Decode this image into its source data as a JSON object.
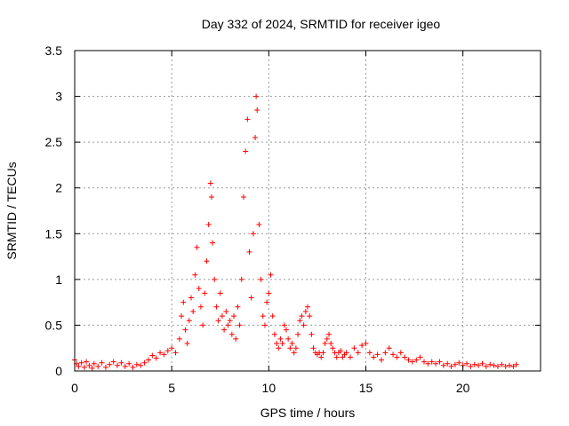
{
  "chart_data": {
    "type": "scatter",
    "title": "Day 332 of 2024, SRMTID for receiver igeo",
    "xlabel": "GPS time / hours",
    "ylabel": "SRMTID / TECUs",
    "xlim": [
      0,
      24
    ],
    "ylim": [
      0,
      3.5
    ],
    "x_ticks": [
      0,
      5,
      10,
      15,
      20
    ],
    "x_tick_labels": [
      "0",
      "5",
      "10",
      "15",
      "20"
    ],
    "y_ticks": [
      0,
      0.5,
      1,
      1.5,
      2,
      2.5,
      3,
      3.5
    ],
    "y_tick_labels": [
      "0",
      "0.5",
      "1",
      "1.5",
      "2",
      "2.5",
      "3",
      "3.5"
    ],
    "grid": true,
    "marker": "+",
    "color": "#ff0000",
    "series": [
      {
        "name": "SRMTID",
        "points": [
          [
            0.0,
            0.12
          ],
          [
            0.1,
            0.08
          ],
          [
            0.2,
            0.05
          ],
          [
            0.35,
            0.09
          ],
          [
            0.5,
            0.04
          ],
          [
            0.6,
            0.1
          ],
          [
            0.75,
            0.06
          ],
          [
            0.9,
            0.03
          ],
          [
            1.0,
            0.08
          ],
          [
            1.2,
            0.05
          ],
          [
            1.4,
            0.09
          ],
          [
            1.6,
            0.04
          ],
          [
            1.8,
            0.07
          ],
          [
            2.0,
            0.1
          ],
          [
            2.2,
            0.06
          ],
          [
            2.4,
            0.09
          ],
          [
            2.6,
            0.05
          ],
          [
            2.8,
            0.08
          ],
          [
            3.0,
            0.04
          ],
          [
            3.2,
            0.07
          ],
          [
            3.4,
            0.06
          ],
          [
            3.6,
            0.09
          ],
          [
            3.8,
            0.12
          ],
          [
            4.0,
            0.17
          ],
          [
            4.2,
            0.14
          ],
          [
            4.4,
            0.2
          ],
          [
            4.6,
            0.18
          ],
          [
            4.8,
            0.22
          ],
          [
            5.0,
            0.25
          ],
          [
            5.2,
            0.2
          ],
          [
            5.4,
            0.35
          ],
          [
            5.5,
            0.6
          ],
          [
            5.6,
            0.75
          ],
          [
            5.7,
            0.45
          ],
          [
            5.8,
            0.3
          ],
          [
            5.9,
            0.55
          ],
          [
            6.0,
            0.8
          ],
          [
            6.1,
            0.65
          ],
          [
            6.2,
            1.05
          ],
          [
            6.3,
            1.35
          ],
          [
            6.4,
            0.9
          ],
          [
            6.5,
            0.7
          ],
          [
            6.6,
            0.5
          ],
          [
            6.7,
            0.85
          ],
          [
            6.8,
            1.2
          ],
          [
            6.9,
            1.6
          ],
          [
            7.0,
            2.05
          ],
          [
            7.05,
            1.9
          ],
          [
            7.1,
            1.4
          ],
          [
            7.2,
            1.0
          ],
          [
            7.3,
            0.7
          ],
          [
            7.4,
            0.55
          ],
          [
            7.5,
            0.85
          ],
          [
            7.6,
            0.6
          ],
          [
            7.7,
            0.45
          ],
          [
            7.8,
            0.65
          ],
          [
            7.9,
            0.5
          ],
          [
            8.0,
            0.55
          ],
          [
            8.1,
            0.4
          ],
          [
            8.2,
            0.6
          ],
          [
            8.3,
            0.35
          ],
          [
            8.4,
            0.7
          ],
          [
            8.5,
            0.5
          ],
          [
            8.6,
            1.0
          ],
          [
            8.7,
            1.9
          ],
          [
            8.8,
            2.4
          ],
          [
            8.9,
            2.75
          ],
          [
            9.0,
            1.3
          ],
          [
            9.1,
            0.8
          ],
          [
            9.2,
            1.5
          ],
          [
            9.3,
            2.55
          ],
          [
            9.35,
            3.0
          ],
          [
            9.4,
            2.85
          ],
          [
            9.5,
            1.6
          ],
          [
            9.6,
            1.0
          ],
          [
            9.7,
            0.6
          ],
          [
            9.8,
            0.5
          ],
          [
            9.9,
            0.75
          ],
          [
            10.0,
            0.85
          ],
          [
            10.1,
            1.05
          ],
          [
            10.2,
            0.6
          ],
          [
            10.3,
            0.4
          ],
          [
            10.4,
            0.3
          ],
          [
            10.5,
            0.25
          ],
          [
            10.6,
            0.35
          ],
          [
            10.7,
            0.3
          ],
          [
            10.8,
            0.5
          ],
          [
            10.9,
            0.45
          ],
          [
            11.0,
            0.35
          ],
          [
            11.1,
            0.25
          ],
          [
            11.2,
            0.3
          ],
          [
            11.3,
            0.2
          ],
          [
            11.4,
            0.25
          ],
          [
            11.5,
            0.4
          ],
          [
            11.6,
            0.55
          ],
          [
            11.7,
            0.6
          ],
          [
            11.8,
            0.5
          ],
          [
            11.9,
            0.65
          ],
          [
            12.0,
            0.7
          ],
          [
            12.1,
            0.6
          ],
          [
            12.2,
            0.4
          ],
          [
            12.3,
            0.25
          ],
          [
            12.4,
            0.2
          ],
          [
            12.5,
            0.18
          ],
          [
            12.6,
            0.2
          ],
          [
            12.7,
            0.15
          ],
          [
            12.8,
            0.2
          ],
          [
            12.9,
            0.3
          ],
          [
            13.0,
            0.35
          ],
          [
            13.1,
            0.4
          ],
          [
            13.2,
            0.3
          ],
          [
            13.3,
            0.25
          ],
          [
            13.4,
            0.2
          ],
          [
            13.5,
            0.15
          ],
          [
            13.6,
            0.2
          ],
          [
            13.7,
            0.22
          ],
          [
            13.8,
            0.15
          ],
          [
            13.9,
            0.18
          ],
          [
            14.0,
            0.2
          ],
          [
            14.2,
            0.15
          ],
          [
            14.4,
            0.25
          ],
          [
            14.6,
            0.2
          ],
          [
            14.8,
            0.28
          ],
          [
            15.0,
            0.3
          ],
          [
            15.2,
            0.2
          ],
          [
            15.4,
            0.15
          ],
          [
            15.6,
            0.18
          ],
          [
            15.8,
            0.12
          ],
          [
            16.0,
            0.2
          ],
          [
            16.2,
            0.25
          ],
          [
            16.4,
            0.18
          ],
          [
            16.6,
            0.15
          ],
          [
            16.8,
            0.2
          ],
          [
            17.0,
            0.15
          ],
          [
            17.2,
            0.12
          ],
          [
            17.4,
            0.1
          ],
          [
            17.6,
            0.12
          ],
          [
            17.8,
            0.15
          ],
          [
            18.0,
            0.1
          ],
          [
            18.2,
            0.08
          ],
          [
            18.4,
            0.1
          ],
          [
            18.6,
            0.08
          ],
          [
            18.8,
            0.1
          ],
          [
            19.0,
            0.06
          ],
          [
            19.2,
            0.08
          ],
          [
            19.4,
            0.05
          ],
          [
            19.6,
            0.07
          ],
          [
            19.8,
            0.09
          ],
          [
            20.0,
            0.06
          ],
          [
            20.2,
            0.08
          ],
          [
            20.4,
            0.05
          ],
          [
            20.6,
            0.07
          ],
          [
            20.8,
            0.06
          ],
          [
            21.0,
            0.08
          ],
          [
            21.2,
            0.05
          ],
          [
            21.4,
            0.07
          ],
          [
            21.6,
            0.06
          ],
          [
            21.8,
            0.05
          ],
          [
            22.0,
            0.07
          ],
          [
            22.2,
            0.05
          ],
          [
            22.4,
            0.06
          ],
          [
            22.6,
            0.05
          ],
          [
            22.75,
            0.07
          ]
        ]
      }
    ]
  }
}
